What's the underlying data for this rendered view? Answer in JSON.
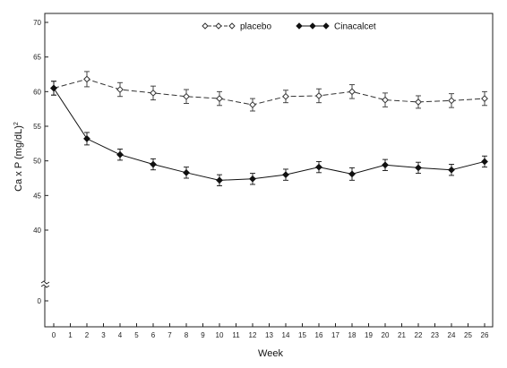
{
  "chart_data": {
    "type": "line",
    "xlabel": "Week",
    "ylabel": "Ca x P (mg/dL)",
    "ylabel_superscript": "2",
    "ylim": [
      40,
      70
    ],
    "xlim": [
      0,
      26
    ],
    "x_ticks": [
      0,
      1,
      2,
      3,
      4,
      5,
      6,
      7,
      8,
      9,
      10,
      11,
      12,
      13,
      14,
      15,
      16,
      17,
      18,
      19,
      20,
      21,
      22,
      23,
      24,
      25,
      26
    ],
    "y_ticks": [
      40,
      45,
      50,
      55,
      60,
      65,
      70
    ],
    "y_break_label": "0",
    "axis_break": true,
    "grid": false,
    "legend_position": "top-center",
    "series": [
      {
        "name": "placebo",
        "marker": "open-diamond",
        "line_style": "dashed",
        "color": "#333333",
        "x": [
          0,
          2,
          4,
          6,
          8,
          10,
          12,
          14,
          16,
          18,
          20,
          22,
          24,
          26
        ],
        "y": [
          60.5,
          61.8,
          60.3,
          59.8,
          59.3,
          59.0,
          58.1,
          59.3,
          59.4,
          60.0,
          58.8,
          58.5,
          58.7,
          59.0
        ],
        "err": [
          1.0,
          1.1,
          1.0,
          1.0,
          1.0,
          1.0,
          0.9,
          0.9,
          1.0,
          1.0,
          1.0,
          0.9,
          1.0,
          1.0
        ]
      },
      {
        "name": "Cinacalcet",
        "marker": "filled-diamond",
        "line_style": "solid",
        "color": "#111111",
        "x": [
          0,
          2,
          4,
          6,
          8,
          10,
          12,
          14,
          16,
          18,
          20,
          22,
          24,
          26
        ],
        "y": [
          60.5,
          53.2,
          50.9,
          49.5,
          48.3,
          47.2,
          47.4,
          48.0,
          49.1,
          48.1,
          49.4,
          49.0,
          48.7,
          49.9
        ],
        "err": [
          1.0,
          0.9,
          0.8,
          0.8,
          0.8,
          0.8,
          0.8,
          0.8,
          0.8,
          0.9,
          0.8,
          0.8,
          0.8,
          0.8
        ]
      }
    ]
  }
}
